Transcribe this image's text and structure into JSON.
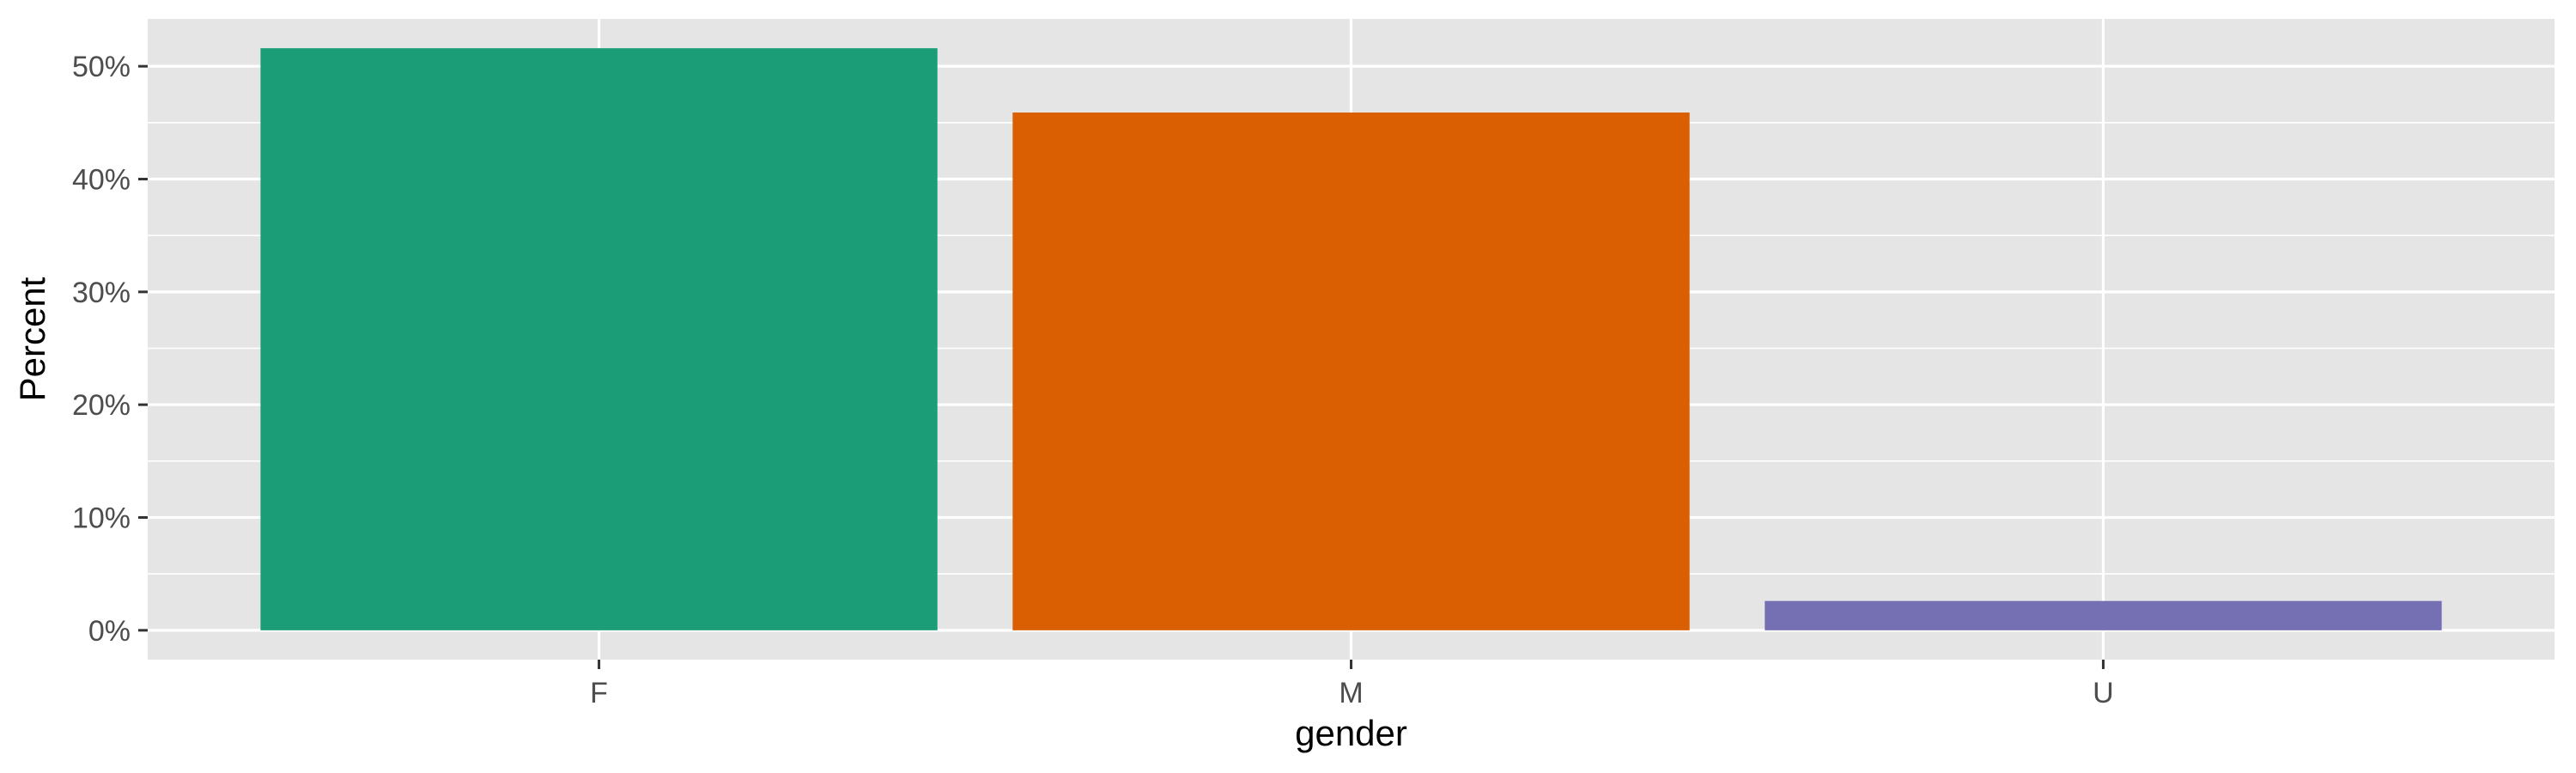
{
  "chart_data": {
    "type": "bar",
    "xlabel": "gender",
    "ylabel": "Percent",
    "categories": [
      "F",
      "M",
      "U"
    ],
    "values": [
      51.6,
      45.9,
      2.6
    ],
    "ylim": [
      -2.6,
      54.2
    ],
    "y_ticks": [
      0,
      10,
      20,
      30,
      40,
      50
    ],
    "y_tick_labels": [
      "0%",
      "10%",
      "20%",
      "30%",
      "40%",
      "50%"
    ],
    "bar_colors": [
      "#1b9e77",
      "#d95f02",
      "#7570b3"
    ],
    "grid": true,
    "legend": "none",
    "panel_background": "#e5e5e5",
    "grid_color": "#ffffff"
  }
}
